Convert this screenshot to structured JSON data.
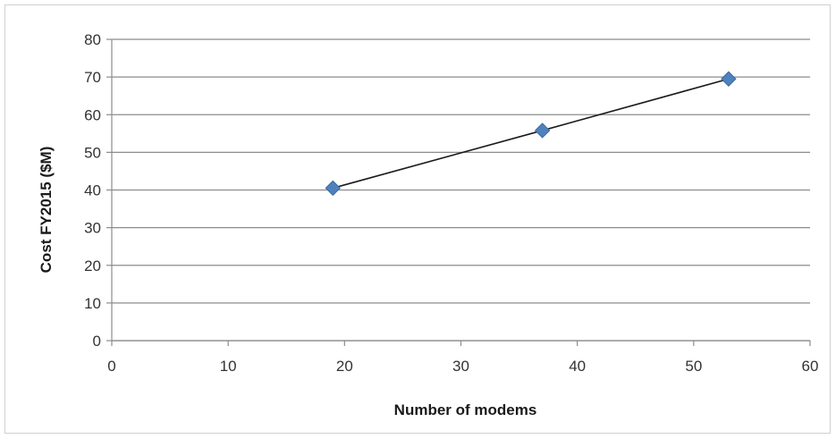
{
  "chart_data": {
    "type": "scatter",
    "title": "",
    "xlabel": "Number of modems",
    "ylabel": "Cost FY2015 ($M)",
    "xlim": [
      0,
      60
    ],
    "ylim": [
      0,
      80
    ],
    "x_ticks": [
      0,
      10,
      20,
      30,
      40,
      50,
      60
    ],
    "y_ticks": [
      0,
      10,
      20,
      30,
      40,
      50,
      60,
      70,
      80
    ],
    "grid": "horizontal",
    "legend": "none",
    "series": [
      {
        "x": [
          19,
          37,
          53
        ],
        "y": [
          40.5,
          55.8,
          69.5
        ],
        "marker": "diamond",
        "marker_color": "#4f81bd",
        "line": true,
        "line_color": "#1a1a1a"
      }
    ]
  }
}
